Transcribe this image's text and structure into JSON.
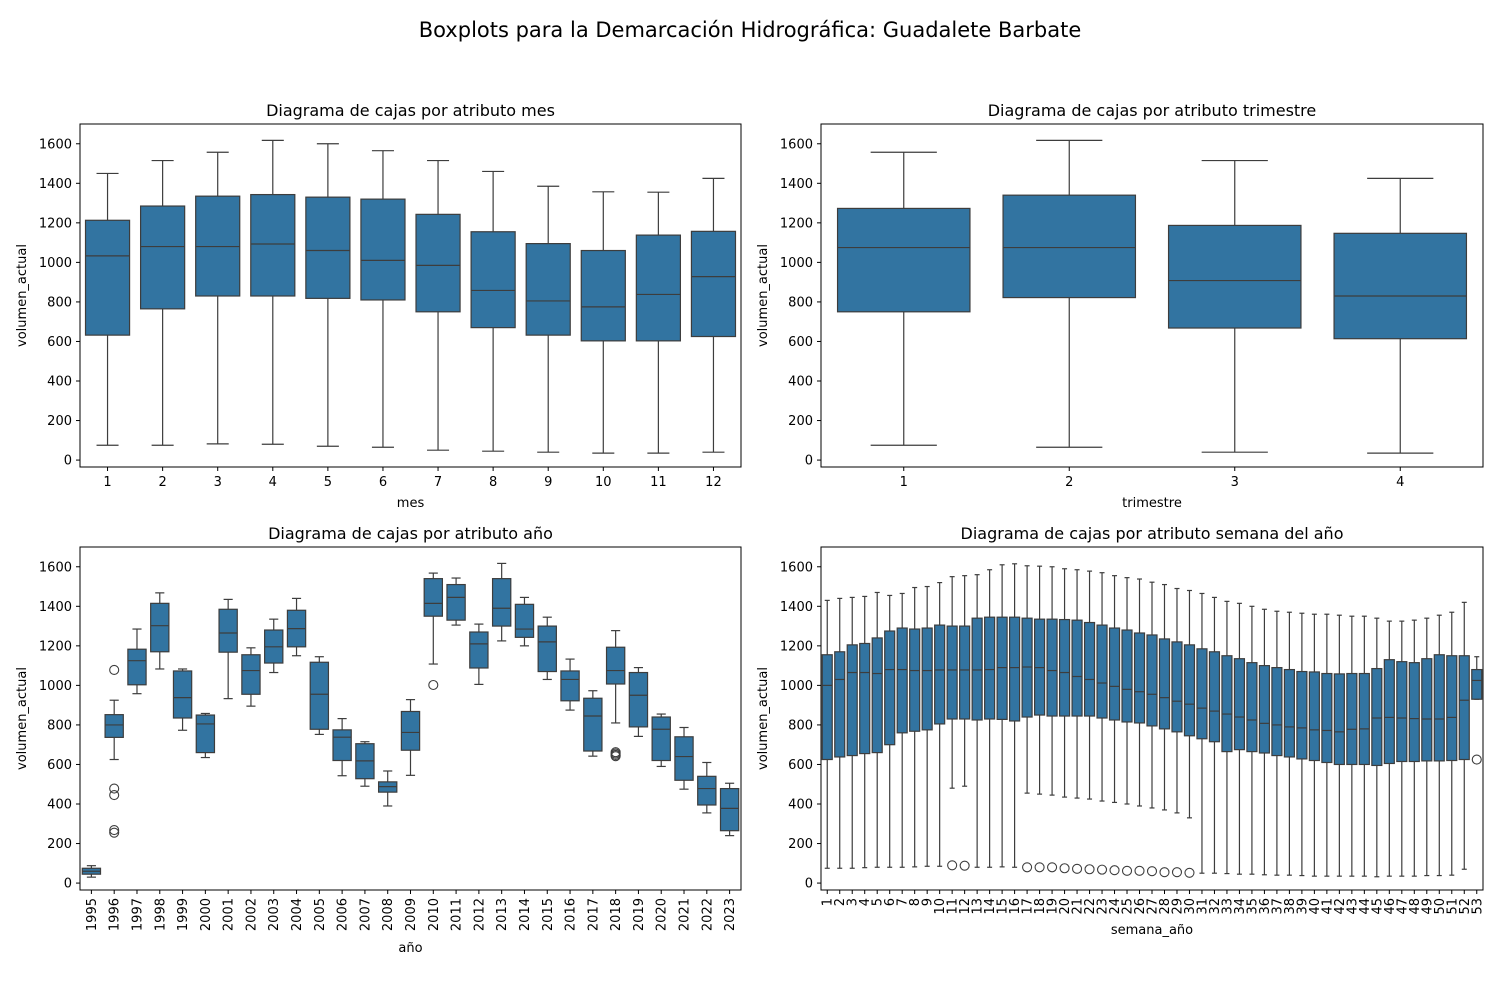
{
  "figure": {
    "title": "Boxplots para la Demarcación Hidrográfica: Guadalete Barbate",
    "box_color": "#3274a1",
    "line_color": "#3d3d3d"
  },
  "chart_data": [
    {
      "type": "boxplot",
      "title": "Diagrama de cajas por atributo mes",
      "xlabel": "mes",
      "ylabel": "volumen_actual",
      "ylim": [
        -35,
        1700
      ],
      "yticks": [
        0,
        200,
        400,
        600,
        800,
        1000,
        1200,
        1400,
        1600
      ],
      "categories": [
        "1",
        "2",
        "3",
        "4",
        "5",
        "6",
        "7",
        "8",
        "9",
        "10",
        "11",
        "12"
      ],
      "boxes": [
        {
          "min": 75,
          "q1": 632,
          "median": 1033,
          "q3": 1213,
          "max": 1450
        },
        {
          "min": 75,
          "q1": 765,
          "median": 1080,
          "q3": 1285,
          "max": 1515
        },
        {
          "min": 82,
          "q1": 830,
          "median": 1080,
          "q3": 1335,
          "max": 1557
        },
        {
          "min": 80,
          "q1": 830,
          "median": 1093,
          "q3": 1343,
          "max": 1617
        },
        {
          "min": 70,
          "q1": 818,
          "median": 1060,
          "q3": 1330,
          "max": 1600
        },
        {
          "min": 65,
          "q1": 810,
          "median": 1010,
          "q3": 1320,
          "max": 1565
        },
        {
          "min": 50,
          "q1": 750,
          "median": 985,
          "q3": 1243,
          "max": 1515
        },
        {
          "min": 45,
          "q1": 670,
          "median": 858,
          "q3": 1155,
          "max": 1460
        },
        {
          "min": 40,
          "q1": 632,
          "median": 805,
          "q3": 1095,
          "max": 1385
        },
        {
          "min": 35,
          "q1": 603,
          "median": 775,
          "q3": 1060,
          "max": 1357
        },
        {
          "min": 35,
          "q1": 603,
          "median": 838,
          "q3": 1138,
          "max": 1355
        },
        {
          "min": 40,
          "q1": 625,
          "median": 928,
          "q3": 1157,
          "max": 1425
        }
      ]
    },
    {
      "type": "boxplot",
      "title": "Diagrama de cajas por atributo trimestre",
      "xlabel": "trimestre",
      "ylabel": "volumen_actual",
      "ylim": [
        -35,
        1700
      ],
      "yticks": [
        0,
        200,
        400,
        600,
        800,
        1000,
        1200,
        1400,
        1600
      ],
      "categories": [
        "1",
        "2",
        "3",
        "4"
      ],
      "boxes": [
        {
          "min": 75,
          "q1": 750,
          "median": 1075,
          "q3": 1273,
          "max": 1557
        },
        {
          "min": 65,
          "q1": 822,
          "median": 1075,
          "q3": 1340,
          "max": 1617
        },
        {
          "min": 40,
          "q1": 668,
          "median": 908,
          "q3": 1187,
          "max": 1515
        },
        {
          "min": 35,
          "q1": 614,
          "median": 830,
          "q3": 1147,
          "max": 1425
        }
      ]
    },
    {
      "type": "boxplot",
      "title": "Diagrama de cajas por atributo año",
      "xlabel": "año",
      "ylabel": "volumen_actual",
      "ylim": [
        -35,
        1700
      ],
      "yticks": [
        0,
        200,
        400,
        600,
        800,
        1000,
        1200,
        1400,
        1600
      ],
      "categories": [
        "1995",
        "1996",
        "1997",
        "1998",
        "1999",
        "2000",
        "2001",
        "2002",
        "2003",
        "2004",
        "2005",
        "2006",
        "2007",
        "2008",
        "2009",
        "2010",
        "2011",
        "2012",
        "2013",
        "2014",
        "2015",
        "2016",
        "2017",
        "2018",
        "2019",
        "2020",
        "2021",
        "2022",
        "2023"
      ],
      "boxes": [
        {
          "min": 30,
          "q1": 45,
          "median": 60,
          "q3": 75,
          "max": 88
        },
        {
          "min": 625,
          "q1": 737,
          "median": 800,
          "q3": 852,
          "max": 925,
          "outliers": [
            1078,
            478,
            445,
            268,
            255
          ]
        },
        {
          "min": 958,
          "q1": 1003,
          "median": 1125,
          "q3": 1183,
          "max": 1285
        },
        {
          "min": 1083,
          "q1": 1170,
          "median": 1302,
          "q3": 1415,
          "max": 1468
        },
        {
          "min": 773,
          "q1": 835,
          "median": 938,
          "q3": 1073,
          "max": 1083
        },
        {
          "min": 635,
          "q1": 660,
          "median": 805,
          "q3": 850,
          "max": 858
        },
        {
          "min": 933,
          "q1": 1168,
          "median": 1265,
          "q3": 1385,
          "max": 1435
        },
        {
          "min": 895,
          "q1": 955,
          "median": 1075,
          "q3": 1155,
          "max": 1190
        },
        {
          "min": 1065,
          "q1": 1113,
          "median": 1195,
          "q3": 1280,
          "max": 1335
        },
        {
          "min": 1150,
          "q1": 1195,
          "median": 1287,
          "q3": 1380,
          "max": 1440
        },
        {
          "min": 752,
          "q1": 778,
          "median": 955,
          "q3": 1117,
          "max": 1145
        },
        {
          "min": 543,
          "q1": 620,
          "median": 738,
          "q3": 775,
          "max": 832
        },
        {
          "min": 490,
          "q1": 528,
          "median": 618,
          "q3": 705,
          "max": 715
        },
        {
          "min": 390,
          "q1": 460,
          "median": 488,
          "q3": 512,
          "max": 567
        },
        {
          "min": 545,
          "q1": 672,
          "median": 762,
          "q3": 868,
          "max": 928
        },
        {
          "min": 1108,
          "q1": 1350,
          "median": 1415,
          "q3": 1540,
          "max": 1568,
          "outliers": [
            1002
          ]
        },
        {
          "min": 1305,
          "q1": 1330,
          "median": 1445,
          "q3": 1510,
          "max": 1543
        },
        {
          "min": 1005,
          "q1": 1088,
          "median": 1210,
          "q3": 1270,
          "max": 1310
        },
        {
          "min": 1225,
          "q1": 1300,
          "median": 1390,
          "q3": 1540,
          "max": 1617
        },
        {
          "min": 1200,
          "q1": 1243,
          "median": 1285,
          "q3": 1410,
          "max": 1445
        },
        {
          "min": 1030,
          "q1": 1070,
          "median": 1220,
          "q3": 1300,
          "max": 1345
        },
        {
          "min": 875,
          "q1": 922,
          "median": 1030,
          "q3": 1073,
          "max": 1133
        },
        {
          "min": 642,
          "q1": 668,
          "median": 845,
          "q3": 935,
          "max": 973
        },
        {
          "min": 810,
          "q1": 1007,
          "median": 1075,
          "q3": 1193,
          "max": 1277,
          "outliers": [
            662,
            655,
            648,
            642
          ]
        },
        {
          "min": 742,
          "q1": 790,
          "median": 950,
          "q3": 1065,
          "max": 1090
        },
        {
          "min": 590,
          "q1": 620,
          "median": 778,
          "q3": 840,
          "max": 855
        },
        {
          "min": 475,
          "q1": 520,
          "median": 640,
          "q3": 740,
          "max": 787
        },
        {
          "min": 355,
          "q1": 395,
          "median": 478,
          "q3": 540,
          "max": 610
        },
        {
          "min": 240,
          "q1": 265,
          "median": 378,
          "q3": 478,
          "max": 505
        }
      ]
    },
    {
      "type": "boxplot",
      "title": "Diagrama de cajas por atributo semana del año",
      "xlabel": "semana_año",
      "ylabel": "volumen_actual",
      "ylim": [
        -35,
        1700
      ],
      "yticks": [
        0,
        200,
        400,
        600,
        800,
        1000,
        1200,
        1400,
        1600
      ],
      "categories": [
        "1",
        "2",
        "3",
        "4",
        "5",
        "6",
        "7",
        "8",
        "9",
        "10",
        "11",
        "12",
        "13",
        "14",
        "15",
        "16",
        "17",
        "18",
        "19",
        "20",
        "21",
        "22",
        "23",
        "24",
        "25",
        "26",
        "27",
        "28",
        "29",
        "30",
        "31",
        "32",
        "33",
        "34",
        "35",
        "36",
        "37",
        "38",
        "39",
        "40",
        "41",
        "42",
        "43",
        "44",
        "45",
        "46",
        "47",
        "48",
        "49",
        "50",
        "51",
        "52",
        "53"
      ],
      "boxes": [
        {
          "min": 75,
          "q1": 625,
          "median": 1000,
          "q3": 1155,
          "max": 1430
        },
        {
          "min": 75,
          "q1": 638,
          "median": 1030,
          "q3": 1170,
          "max": 1440
        },
        {
          "min": 75,
          "q1": 645,
          "median": 1065,
          "q3": 1205,
          "max": 1445
        },
        {
          "min": 78,
          "q1": 655,
          "median": 1065,
          "q3": 1212,
          "max": 1450
        },
        {
          "min": 80,
          "q1": 660,
          "median": 1060,
          "q3": 1240,
          "max": 1470
        },
        {
          "min": 80,
          "q1": 700,
          "median": 1080,
          "q3": 1275,
          "max": 1455
        },
        {
          "min": 80,
          "q1": 760,
          "median": 1080,
          "q3": 1290,
          "max": 1465
        },
        {
          "min": 82,
          "q1": 768,
          "median": 1075,
          "q3": 1285,
          "max": 1495
        },
        {
          "min": 85,
          "q1": 775,
          "median": 1075,
          "q3": 1290,
          "max": 1500
        },
        {
          "min": 85,
          "q1": 805,
          "median": 1078,
          "q3": 1305,
          "max": 1520
        },
        {
          "min": 480,
          "q1": 830,
          "median": 1078,
          "q3": 1300,
          "max": 1550,
          "outliers": [
            90
          ]
        },
        {
          "min": 490,
          "q1": 830,
          "median": 1078,
          "q3": 1300,
          "max": 1555,
          "outliers": [
            88
          ]
        },
        {
          "min": 80,
          "q1": 825,
          "median": 1078,
          "q3": 1340,
          "max": 1560
        },
        {
          "min": 80,
          "q1": 830,
          "median": 1080,
          "q3": 1345,
          "max": 1585
        },
        {
          "min": 82,
          "q1": 828,
          "median": 1090,
          "q3": 1345,
          "max": 1610
        },
        {
          "min": 80,
          "q1": 820,
          "median": 1090,
          "q3": 1345,
          "max": 1615
        },
        {
          "min": 455,
          "q1": 840,
          "median": 1093,
          "q3": 1340,
          "max": 1605,
          "outliers": [
            80
          ]
        },
        {
          "min": 450,
          "q1": 850,
          "median": 1090,
          "q3": 1335,
          "max": 1603,
          "outliers": [
            80
          ]
        },
        {
          "min": 445,
          "q1": 845,
          "median": 1075,
          "q3": 1335,
          "max": 1600,
          "outliers": [
            80
          ]
        },
        {
          "min": 435,
          "q1": 845,
          "median": 1065,
          "q3": 1333,
          "max": 1590,
          "outliers": [
            75
          ]
        },
        {
          "min": 430,
          "q1": 845,
          "median": 1045,
          "q3": 1330,
          "max": 1585,
          "outliers": [
            72
          ]
        },
        {
          "min": 425,
          "q1": 845,
          "median": 1030,
          "q3": 1318,
          "max": 1578,
          "outliers": [
            70
          ]
        },
        {
          "min": 415,
          "q1": 835,
          "median": 1012,
          "q3": 1305,
          "max": 1570,
          "outliers": [
            68
          ]
        },
        {
          "min": 408,
          "q1": 825,
          "median": 995,
          "q3": 1290,
          "max": 1555,
          "outliers": [
            65
          ]
        },
        {
          "min": 400,
          "q1": 815,
          "median": 980,
          "q3": 1280,
          "max": 1545,
          "outliers": [
            62
          ]
        },
        {
          "min": 390,
          "q1": 810,
          "median": 968,
          "q3": 1265,
          "max": 1538,
          "outliers": [
            62
          ]
        },
        {
          "min": 380,
          "q1": 795,
          "median": 955,
          "q3": 1255,
          "max": 1522,
          "outliers": [
            60
          ]
        },
        {
          "min": 370,
          "q1": 780,
          "median": 938,
          "q3": 1235,
          "max": 1510,
          "outliers": [
            55
          ]
        },
        {
          "min": 355,
          "q1": 765,
          "median": 920,
          "q3": 1220,
          "max": 1490,
          "outliers": [
            55
          ]
        },
        {
          "min": 330,
          "q1": 745,
          "median": 905,
          "q3": 1205,
          "max": 1480,
          "outliers": [
            52
          ]
        },
        {
          "min": 50,
          "q1": 730,
          "median": 885,
          "q3": 1185,
          "max": 1465
        },
        {
          "min": 50,
          "q1": 715,
          "median": 870,
          "q3": 1170,
          "max": 1445
        },
        {
          "min": 48,
          "q1": 665,
          "median": 855,
          "q3": 1150,
          "max": 1425
        },
        {
          "min": 45,
          "q1": 675,
          "median": 840,
          "q3": 1135,
          "max": 1415
        },
        {
          "min": 45,
          "q1": 665,
          "median": 825,
          "q3": 1115,
          "max": 1400
        },
        {
          "min": 42,
          "q1": 658,
          "median": 808,
          "q3": 1100,
          "max": 1385
        },
        {
          "min": 40,
          "q1": 645,
          "median": 800,
          "q3": 1090,
          "max": 1375
        },
        {
          "min": 40,
          "q1": 638,
          "median": 790,
          "q3": 1080,
          "max": 1370
        },
        {
          "min": 38,
          "q1": 628,
          "median": 785,
          "q3": 1070,
          "max": 1365
        },
        {
          "min": 35,
          "q1": 620,
          "median": 775,
          "q3": 1068,
          "max": 1360
        },
        {
          "min": 35,
          "q1": 610,
          "median": 772,
          "q3": 1060,
          "max": 1360
        },
        {
          "min": 35,
          "q1": 600,
          "median": 765,
          "q3": 1058,
          "max": 1355
        },
        {
          "min": 35,
          "q1": 600,
          "median": 778,
          "q3": 1060,
          "max": 1350
        },
        {
          "min": 35,
          "q1": 600,
          "median": 780,
          "q3": 1060,
          "max": 1350
        },
        {
          "min": 32,
          "q1": 595,
          "median": 835,
          "q3": 1085,
          "max": 1340
        },
        {
          "min": 35,
          "q1": 605,
          "median": 838,
          "q3": 1130,
          "max": 1325
        },
        {
          "min": 35,
          "q1": 615,
          "median": 835,
          "q3": 1120,
          "max": 1325
        },
        {
          "min": 35,
          "q1": 615,
          "median": 832,
          "q3": 1115,
          "max": 1330
        },
        {
          "min": 38,
          "q1": 618,
          "median": 830,
          "q3": 1135,
          "max": 1340
        },
        {
          "min": 38,
          "q1": 618,
          "median": 830,
          "q3": 1155,
          "max": 1355
        },
        {
          "min": 40,
          "q1": 620,
          "median": 838,
          "q3": 1150,
          "max": 1370
        },
        {
          "min": 70,
          "q1": 625,
          "median": 925,
          "q3": 1150,
          "max": 1420
        },
        {
          "min": 930,
          "q1": 930,
          "median": 1025,
          "q3": 1080,
          "max": 1145,
          "outliers": [
            625
          ]
        }
      ]
    }
  ]
}
